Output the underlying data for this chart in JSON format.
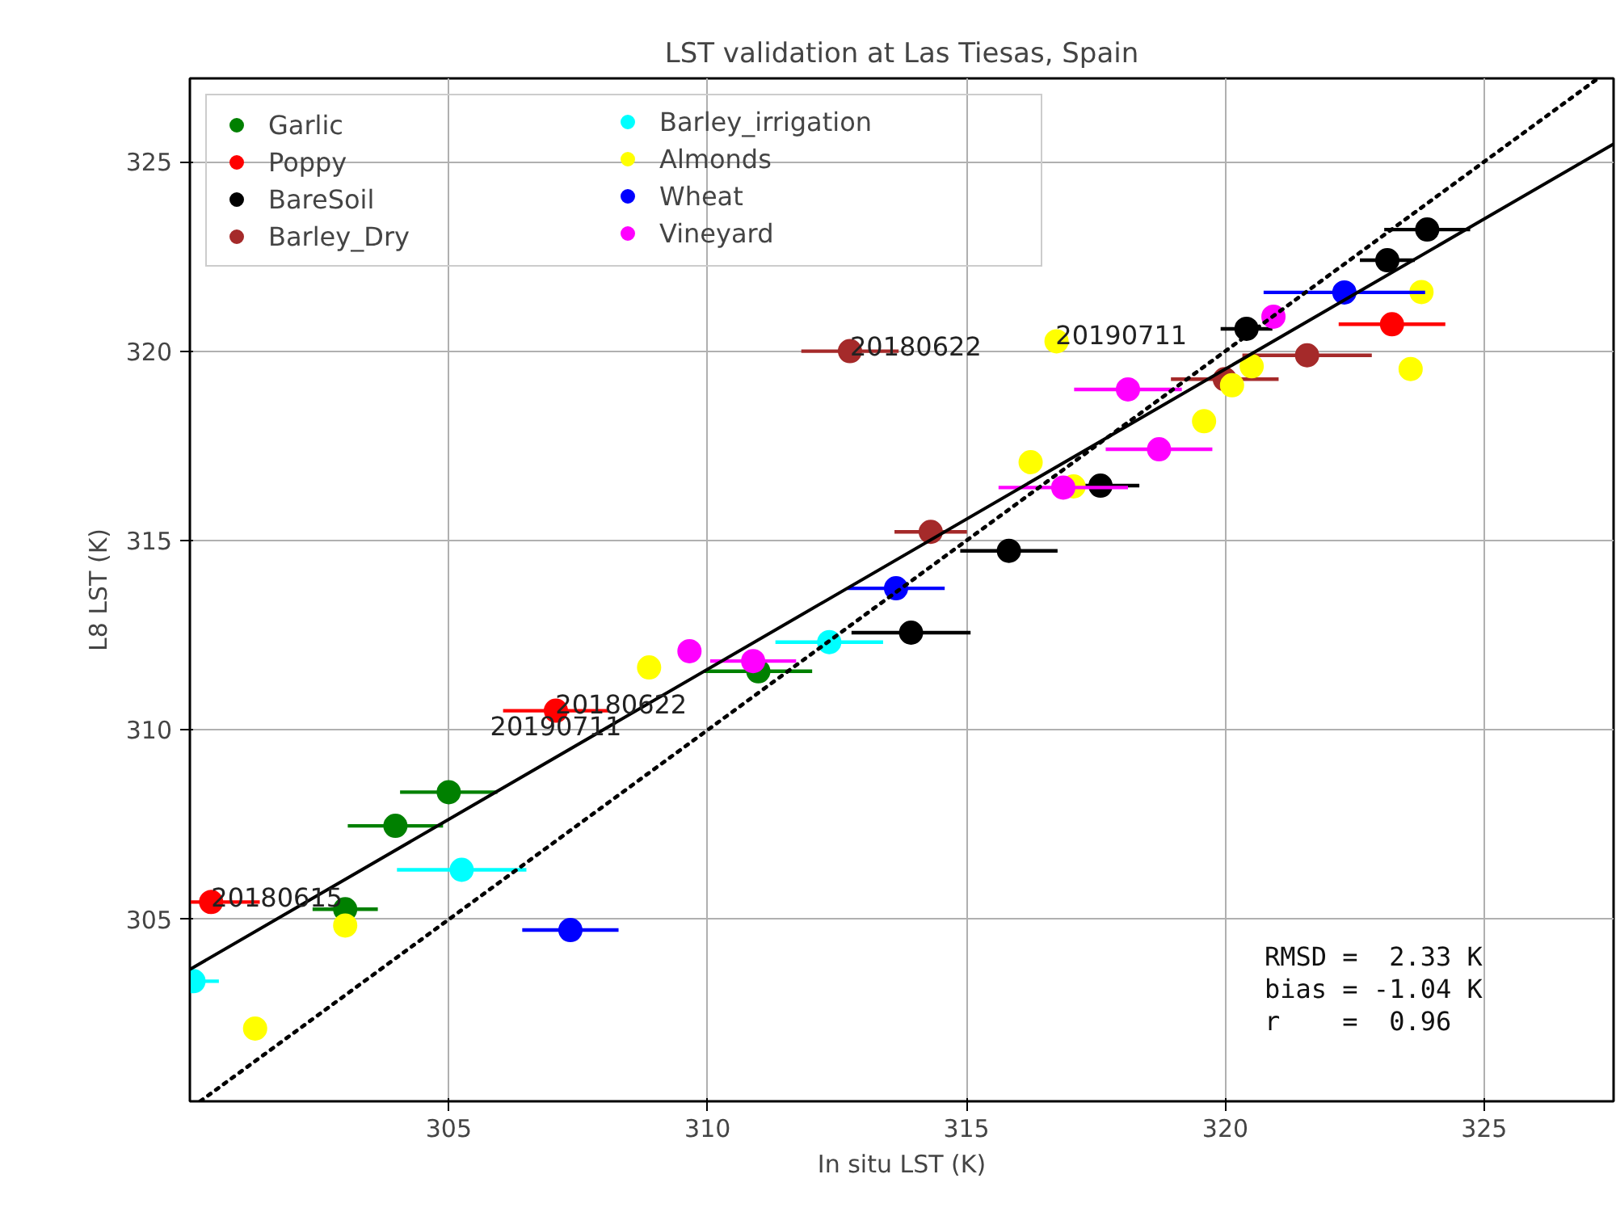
{
  "chart_data": {
    "type": "scatter",
    "title": "LST validation at Las Tiesas, Spain",
    "xlabel": "In situ LST (K)",
    "ylabel": "L8 LST (K)",
    "xlim": [
      300.0,
      327.5
    ],
    "ylim": [
      300.2,
      327.2
    ],
    "xticks": [
      305,
      310,
      315,
      320,
      325
    ],
    "yticks": [
      305,
      310,
      315,
      320,
      325
    ],
    "grid": true,
    "legend": "top left",
    "marker": "circle",
    "series": [
      {
        "name": "Garlic",
        "color": "#008000",
        "x": [
          305.0,
          303.97,
          303.0,
          310.98
        ],
        "values": [
          308.36,
          307.47,
          305.27,
          311.55
        ],
        "xerrors": [
          0.94,
          0.92,
          0.63,
          1.04
        ]
      },
      {
        "name": "Poppy",
        "color": "#ff0000",
        "x": [
          300.41,
          307.07,
          323.22
        ],
        "values": [
          305.46,
          310.51,
          320.71
        ],
        "xerrors": [
          0.94,
          1.02,
          1.03
        ]
      },
      {
        "name": "BareSoil",
        "color": "#000000",
        "x": [
          313.93,
          315.82,
          317.59,
          320.41,
          323.13,
          323.9
        ],
        "values": [
          312.57,
          314.73,
          316.45,
          320.59,
          322.4,
          323.21
        ],
        "xerrors": [
          1.15,
          0.94,
          0.75,
          0.5,
          0.53,
          0.83
        ]
      },
      {
        "name": "Barley_Dry",
        "color": "#a52a2a",
        "x": [
          314.31,
          319.99,
          321.58,
          312.75
        ],
        "values": [
          315.23,
          319.26,
          319.89,
          320.0
        ],
        "xerrors": [
          0.7,
          1.04,
          1.25,
          0.94
        ]
      },
      {
        "name": "Barley_irrigation",
        "color": "#00ffff",
        "x": [
          305.25,
          300.07,
          312.35
        ],
        "values": [
          306.31,
          303.37,
          312.32
        ],
        "xerrors": [
          1.25,
          0.49,
          1.04
        ]
      },
      {
        "name": "Almonds",
        "color": "#ffff00",
        "x": [
          301.26,
          303.0,
          308.87,
          316.74,
          316.24,
          317.07,
          319.59,
          320.13,
          320.51,
          323.79,
          323.58
        ],
        "values": [
          302.12,
          304.84,
          311.65,
          320.26,
          317.07,
          316.43,
          318.15,
          319.1,
          319.6,
          321.56,
          319.53
        ]
      },
      {
        "name": "Wheat",
        "color": "#0000ff",
        "x": [
          307.35,
          313.64,
          322.3
        ],
        "values": [
          304.72,
          313.74,
          321.55
        ],
        "xerrors": [
          0.93,
          0.94,
          1.56
        ]
      },
      {
        "name": "Vineyard",
        "color": "#ff00ff",
        "x": [
          309.65,
          310.88,
          316.87,
          318.72,
          318.12,
          320.93
        ],
        "values": [
          312.08,
          311.82,
          316.4,
          317.41,
          318.99,
          320.91
        ],
        "xerrors": [
          null,
          0.83,
          1.25,
          1.03,
          1.04,
          null
        ]
      },
      {
        "type": "line",
        "color": "#000000",
        "line_style": "solid",
        "marker": "none",
        "x": [
          300.0,
          327.5
        ],
        "values": [
          303.68,
          325.47
        ]
      },
      {
        "type": "line",
        "color": "#000000",
        "line_style": "dotted",
        "marker": "none",
        "x": [
          300.2,
          327.2
        ],
        "values": [
          300.2,
          327.2
        ]
      }
    ],
    "annotations": [
      {
        "text": "20180615",
        "x": 300.41,
        "y": 305.47
      },
      {
        "text": "20190711",
        "x": 307.07,
        "y": 310.51
      },
      {
        "text": "20180622",
        "x": 307.06,
        "y": 310.57
      },
      {
        "text": "20180622",
        "x": 312.75,
        "y": 320.02
      },
      {
        "text": "20190711",
        "x": 316.72,
        "y": 320.32
      },
      "RMSD =  2.33 K",
      "bias = -1.04 K",
      "r    =  0.96"
    ]
  }
}
